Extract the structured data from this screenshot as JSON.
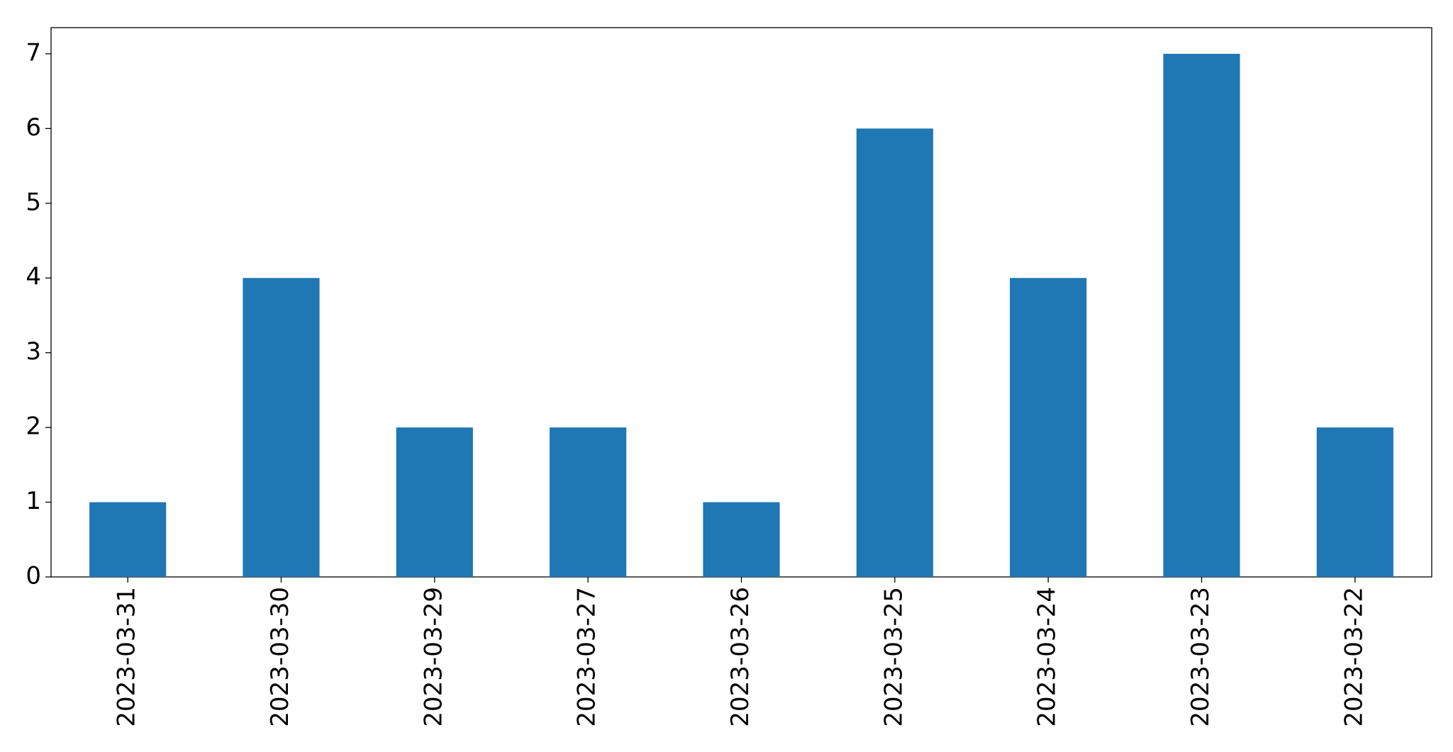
{
  "chart_data": {
    "type": "bar",
    "categories": [
      "2023-03-31",
      "2023-03-30",
      "2023-03-29",
      "2023-03-27",
      "2023-03-26",
      "2023-03-25",
      "2023-03-24",
      "2023-03-23",
      "2023-03-22"
    ],
    "values": [
      1,
      4,
      2,
      2,
      1,
      6,
      4,
      7,
      2
    ],
    "color": "#1f77b4",
    "ylim": [
      0,
      7.35
    ],
    "yticks": [
      0,
      1,
      2,
      3,
      4,
      5,
      6,
      7
    ],
    "grid": false
  }
}
